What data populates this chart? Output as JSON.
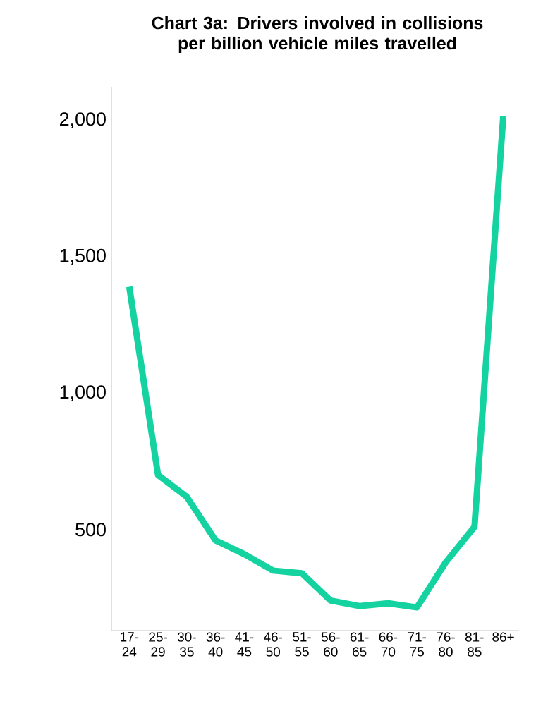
{
  "chart_data": {
    "type": "line",
    "title": "Chart 3a: Drivers involved in collisions per billion vehicle miles travelled",
    "categories": [
      "17-24",
      "25-29",
      "30-35",
      "36-40",
      "41-45",
      "46-50",
      "51-55",
      "56-60",
      "61-65",
      "66-70",
      "71-75",
      "76-80",
      "81-85",
      "86+"
    ],
    "values": [
      1390,
      700,
      620,
      460,
      410,
      350,
      340,
      240,
      220,
      230,
      215,
      380,
      510,
      2015
    ],
    "color": "#14d3a0",
    "ylim": [
      130,
      2120
    ],
    "yticks": [
      {
        "value": 500,
        "label": "500"
      },
      {
        "value": 1000,
        "label": "1,000"
      },
      {
        "value": 1500,
        "label": "1,500"
      },
      {
        "value": 2000,
        "label": "2,000"
      }
    ]
  }
}
